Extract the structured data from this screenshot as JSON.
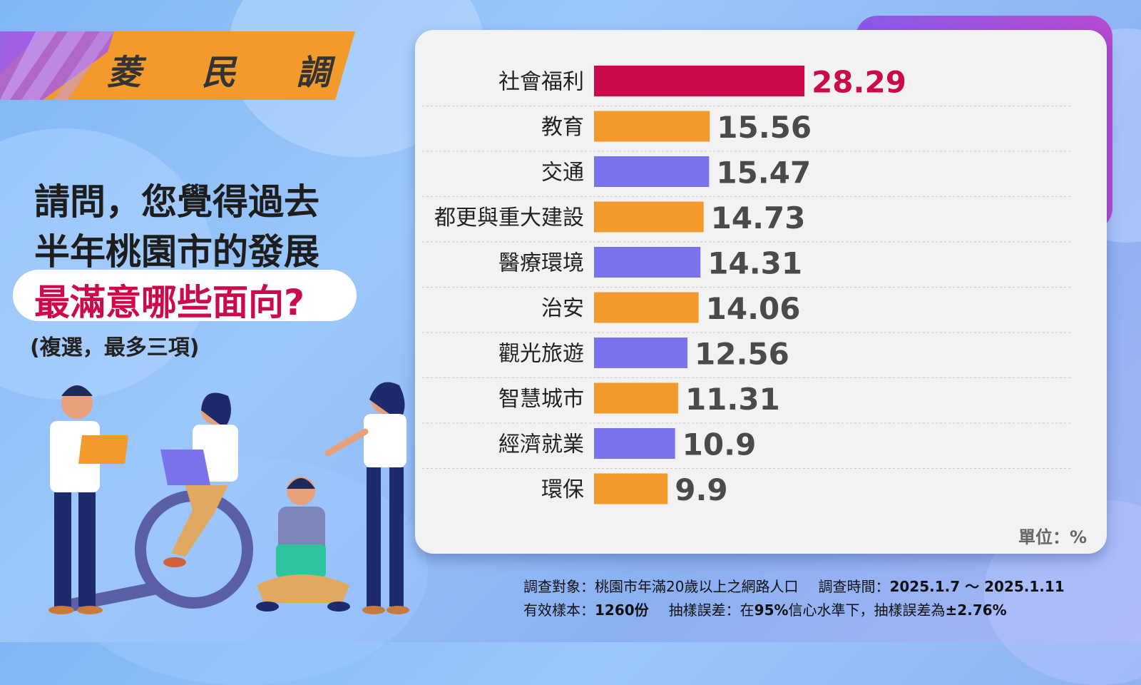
{
  "brand": {
    "label": "菱 民 調"
  },
  "question": {
    "line1": "請問，您覺得過去",
    "line2": "半年桃園市的發展",
    "line3": "最滿意哪些面向?",
    "note": "(複選，最多三項)"
  },
  "unit_label": "單位：%",
  "footer": {
    "target_label": "調查對象：",
    "target_value": "桃園市年滿20歲以上之網路人口",
    "period_label": "調查時間：",
    "period_value": "2025.1.7 ～ 2025.1.11",
    "sample_label": "有效樣本：",
    "sample_value": "1260份",
    "error_label": "抽樣誤差：",
    "error_value_prefix": "在",
    "error_value_a": "95%",
    "error_value_b": "信心水準下，抽樣誤差為",
    "error_value_c": "±2.76%"
  },
  "colors": {
    "highlight": "#cc0a4a",
    "orange": "#f39a2c",
    "purple": "#7b73ec",
    "value_text": "#4a4a4a",
    "accent_pill": "#ffffff"
  },
  "chart_data": {
    "type": "bar",
    "orientation": "horizontal",
    "categories": [
      "社會福利",
      "教育",
      "交通",
      "都更與重大建設",
      "醫療環境",
      "治安",
      "觀光旅遊",
      "智慧城市",
      "經濟就業",
      "環保"
    ],
    "values": [
      28.29,
      15.56,
      15.47,
      14.73,
      14.31,
      14.06,
      12.56,
      11.31,
      10.9,
      9.9
    ],
    "value_labels": [
      "28.29",
      "15.56",
      "15.47",
      "14.73",
      "14.31",
      "14.06",
      "12.56",
      "11.31",
      "10.9",
      "9.9"
    ],
    "bar_colors": [
      "highlight",
      "orange",
      "purple",
      "orange",
      "purple",
      "orange",
      "purple",
      "orange",
      "purple",
      "orange"
    ],
    "unit": "%"
  }
}
